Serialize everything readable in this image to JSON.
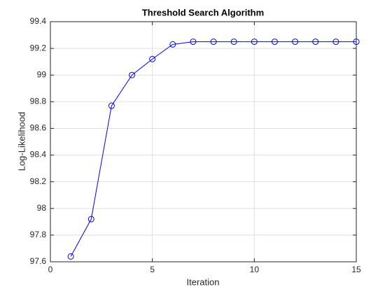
{
  "chart_data": {
    "type": "line",
    "title": "Threshold Search Algorithm",
    "xlabel": "Iteration",
    "ylabel": "Log-Likelihood",
    "x": [
      1,
      2,
      3,
      4,
      5,
      6,
      7,
      8,
      9,
      10,
      11,
      12,
      13,
      14,
      15
    ],
    "values": [
      97.64,
      97.92,
      98.77,
      99.0,
      99.12,
      99.23,
      99.25,
      99.25,
      99.25,
      99.25,
      99.25,
      99.25,
      99.25,
      99.25,
      99.25
    ],
    "color": "#0000ff",
    "marker": "circle",
    "xlim": [
      0,
      15
    ],
    "xticks": [
      0,
      5,
      10,
      15
    ],
    "ylim": [
      97.6,
      99.4
    ],
    "yticks": [
      97.6,
      97.8,
      98,
      98.2,
      98.4,
      98.6,
      98.8,
      99,
      99.2,
      99.4
    ],
    "grid": true
  }
}
